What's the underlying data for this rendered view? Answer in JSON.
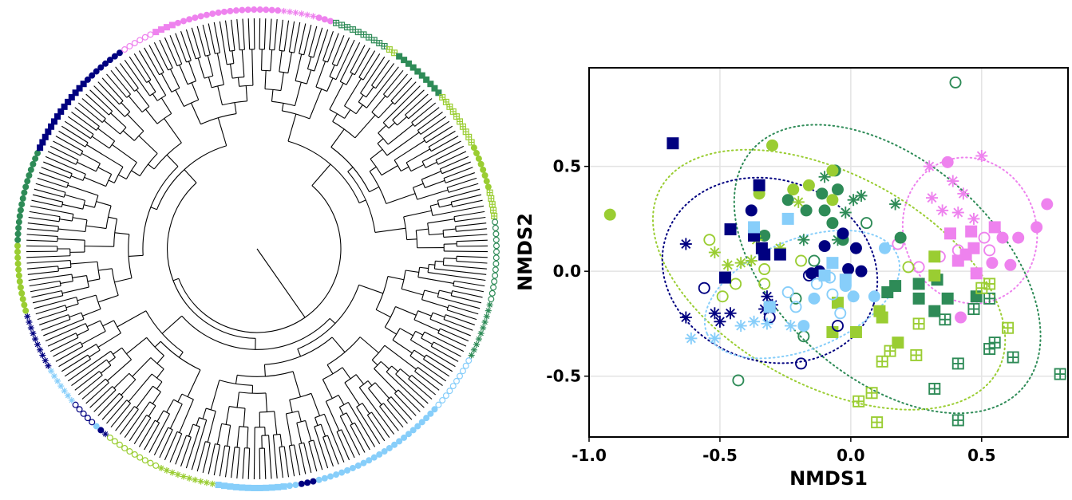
{
  "chart_data": {
    "type": "scatter",
    "xlabel": "NMDS1",
    "ylabel": "NMDS2",
    "xlim": [
      -1.0,
      0.83
    ],
    "ylim": [
      -0.79,
      0.97
    ],
    "xticks": [
      {
        "value": -1.0,
        "label": "-1.0"
      },
      {
        "value": -0.5,
        "label": "-0.5"
      },
      {
        "value": 0.0,
        "label": "0.0"
      },
      {
        "value": 0.5,
        "label": "0.5"
      }
    ],
    "yticks": [
      {
        "value": -0.5,
        "label": "-0.5"
      },
      {
        "value": 0.0,
        "label": "0.0"
      },
      {
        "value": 0.5,
        "label": "0.5"
      }
    ],
    "grid": true,
    "series": [
      {
        "color": "#ee82ee",
        "marker": "circle",
        "x": [
          0.37,
          0.75,
          0.71,
          0.58,
          0.64,
          0.54,
          0.61,
          0.42
        ],
        "y": [
          0.52,
          0.32,
          0.21,
          0.16,
          0.16,
          0.04,
          0.03,
          -0.22
        ]
      },
      {
        "color": "#ee82ee",
        "marker": "square",
        "x": [
          0.55,
          0.46,
          0.41,
          0.44,
          0.48,
          0.38,
          0.47
        ],
        "y": [
          0.21,
          0.19,
          0.05,
          0.08,
          -0.01,
          0.18,
          0.11
        ]
      },
      {
        "color": "#ee82ee",
        "marker": "star",
        "x": [
          0.5,
          0.3,
          0.39,
          0.31,
          0.43,
          0.35,
          0.41,
          0.47
        ],
        "y": [
          0.55,
          0.5,
          0.43,
          0.35,
          0.37,
          0.29,
          0.28,
          0.25
        ]
      },
      {
        "color": "#ee82ee",
        "marker": "open",
        "x": [
          0.34,
          0.26,
          0.41,
          0.51,
          0.53,
          0.18
        ],
        "y": [
          0.07,
          0.02,
          0.1,
          0.16,
          0.1,
          0.13
        ]
      },
      {
        "color": "#2e8b57",
        "marker": "circle",
        "x": [
          -0.05,
          -0.11,
          -0.17,
          -0.07,
          -0.1,
          0.19,
          -0.03,
          -0.24,
          -0.06,
          -0.33
        ],
        "y": [
          0.39,
          0.37,
          0.29,
          0.23,
          0.29,
          0.16,
          0.15,
          0.34,
          0.48,
          0.17
        ]
      },
      {
        "color": "#2e8b57",
        "marker": "square",
        "x": [
          0.26,
          0.33,
          0.37,
          0.32,
          0.14,
          0.48,
          0.26,
          0.17
        ],
        "y": [
          -0.06,
          -0.04,
          -0.13,
          -0.19,
          -0.1,
          -0.12,
          -0.13,
          -0.07
        ]
      },
      {
        "color": "#2e8b57",
        "marker": "star",
        "x": [
          -0.1,
          0.04,
          0.17,
          0.01,
          -0.02,
          -0.18,
          -0.05
        ],
        "y": [
          0.45,
          0.36,
          0.32,
          0.34,
          0.28,
          0.15,
          0.15
        ]
      },
      {
        "color": "#2e8b57",
        "marker": "open",
        "x": [
          0.4,
          0.06,
          -0.14,
          -0.43,
          -0.21,
          -0.18
        ],
        "y": [
          0.9,
          0.23,
          0.05,
          -0.52,
          -0.13,
          -0.31
        ]
      },
      {
        "color": "#2e8b57",
        "marker": "sqplus",
        "x": [
          0.8,
          0.62,
          0.55,
          0.53,
          0.32,
          0.41,
          0.41,
          0.36,
          0.47,
          0.53
        ],
        "y": [
          -0.49,
          -0.41,
          -0.34,
          -0.37,
          -0.56,
          -0.44,
          -0.71,
          -0.23,
          -0.18,
          -0.13
        ]
      },
      {
        "color": "#9acd32",
        "marker": "circle",
        "x": [
          -0.92,
          -0.3,
          -0.07,
          -0.22,
          -0.16,
          -0.07,
          -0.35
        ],
        "y": [
          0.27,
          0.6,
          0.48,
          0.39,
          0.41,
          0.34,
          0.37
        ]
      },
      {
        "color": "#9acd32",
        "marker": "square",
        "x": [
          0.12,
          0.11,
          0.18,
          0.32,
          0.32,
          -0.07,
          0.02,
          -0.05
        ],
        "y": [
          -0.22,
          -0.19,
          -0.34,
          0.07,
          -0.02,
          -0.29,
          -0.29,
          -0.15
        ]
      },
      {
        "color": "#9acd32",
        "marker": "star",
        "x": [
          -0.52,
          -0.47,
          -0.42,
          -0.38,
          -0.36,
          -0.2,
          -0.27
        ],
        "y": [
          0.09,
          0.03,
          0.04,
          0.05,
          0.15,
          0.33,
          0.11
        ]
      },
      {
        "color": "#9acd32",
        "marker": "open",
        "x": [
          -0.54,
          -0.49,
          -0.44,
          -0.33,
          -0.19,
          0.22,
          -0.33
        ],
        "y": [
          0.15,
          -0.12,
          -0.06,
          -0.06,
          0.05,
          0.02,
          0.01
        ]
      },
      {
        "color": "#9acd32",
        "marker": "sqplus",
        "x": [
          0.03,
          0.08,
          0.1,
          0.12,
          0.15,
          0.25,
          0.26,
          0.6,
          0.5,
          0.53
        ],
        "y": [
          -0.62,
          -0.58,
          -0.72,
          -0.43,
          -0.38,
          -0.4,
          -0.25,
          -0.27,
          -0.08,
          -0.06
        ]
      },
      {
        "color": "#000080",
        "marker": "circle",
        "x": [
          -0.38,
          -0.1,
          -0.03,
          0.02,
          0.04,
          -0.12,
          -0.15,
          -0.01
        ],
        "y": [
          0.29,
          0.12,
          0.18,
          0.11,
          0.0,
          0.0,
          -0.01,
          0.01
        ]
      },
      {
        "color": "#000080",
        "marker": "square",
        "x": [
          -0.68,
          -0.35,
          -0.46,
          -0.48,
          -0.37,
          -0.34,
          -0.27,
          -0.33
        ],
        "y": [
          0.61,
          0.41,
          0.2,
          -0.03,
          0.17,
          0.11,
          0.08,
          0.08
        ]
      },
      {
        "color": "#000080",
        "marker": "star",
        "x": [
          -0.63,
          -0.63,
          -0.52,
          -0.5,
          -0.46,
          -0.33,
          -0.32,
          -0.3
        ],
        "y": [
          0.13,
          -0.22,
          -0.2,
          -0.24,
          -0.2,
          -0.18,
          -0.12,
          -0.16
        ]
      },
      {
        "color": "#000080",
        "marker": "open",
        "x": [
          -0.56,
          -0.31,
          -0.05,
          -0.19,
          -0.16
        ],
        "y": [
          -0.08,
          -0.22,
          -0.26,
          -0.44,
          -0.02
        ]
      },
      {
        "color": "#87cefa",
        "marker": "circle",
        "x": [
          0.13,
          0.01,
          0.09,
          -0.18,
          -0.14,
          -0.02
        ],
        "y": [
          0.11,
          -0.12,
          -0.12,
          -0.26,
          -0.13,
          -0.07
        ]
      },
      {
        "color": "#87cefa",
        "marker": "square",
        "x": [
          -0.24,
          -0.37,
          -0.31,
          -0.07,
          -0.02,
          -0.1
        ],
        "y": [
          0.25,
          0.21,
          -0.17,
          0.04,
          -0.04,
          -0.02
        ]
      },
      {
        "color": "#87cefa",
        "marker": "star",
        "x": [
          -0.61,
          -0.52,
          -0.42,
          -0.37,
          -0.32,
          -0.23
        ],
        "y": [
          -0.32,
          -0.32,
          -0.26,
          -0.24,
          -0.25,
          -0.26
        ]
      },
      {
        "color": "#87cefa",
        "marker": "open",
        "x": [
          -0.21,
          -0.08,
          -0.04,
          -0.07,
          -0.24,
          -0.13
        ],
        "y": [
          -0.17,
          -0.03,
          -0.2,
          -0.11,
          -0.1,
          -0.06
        ]
      }
    ]
  }
}
